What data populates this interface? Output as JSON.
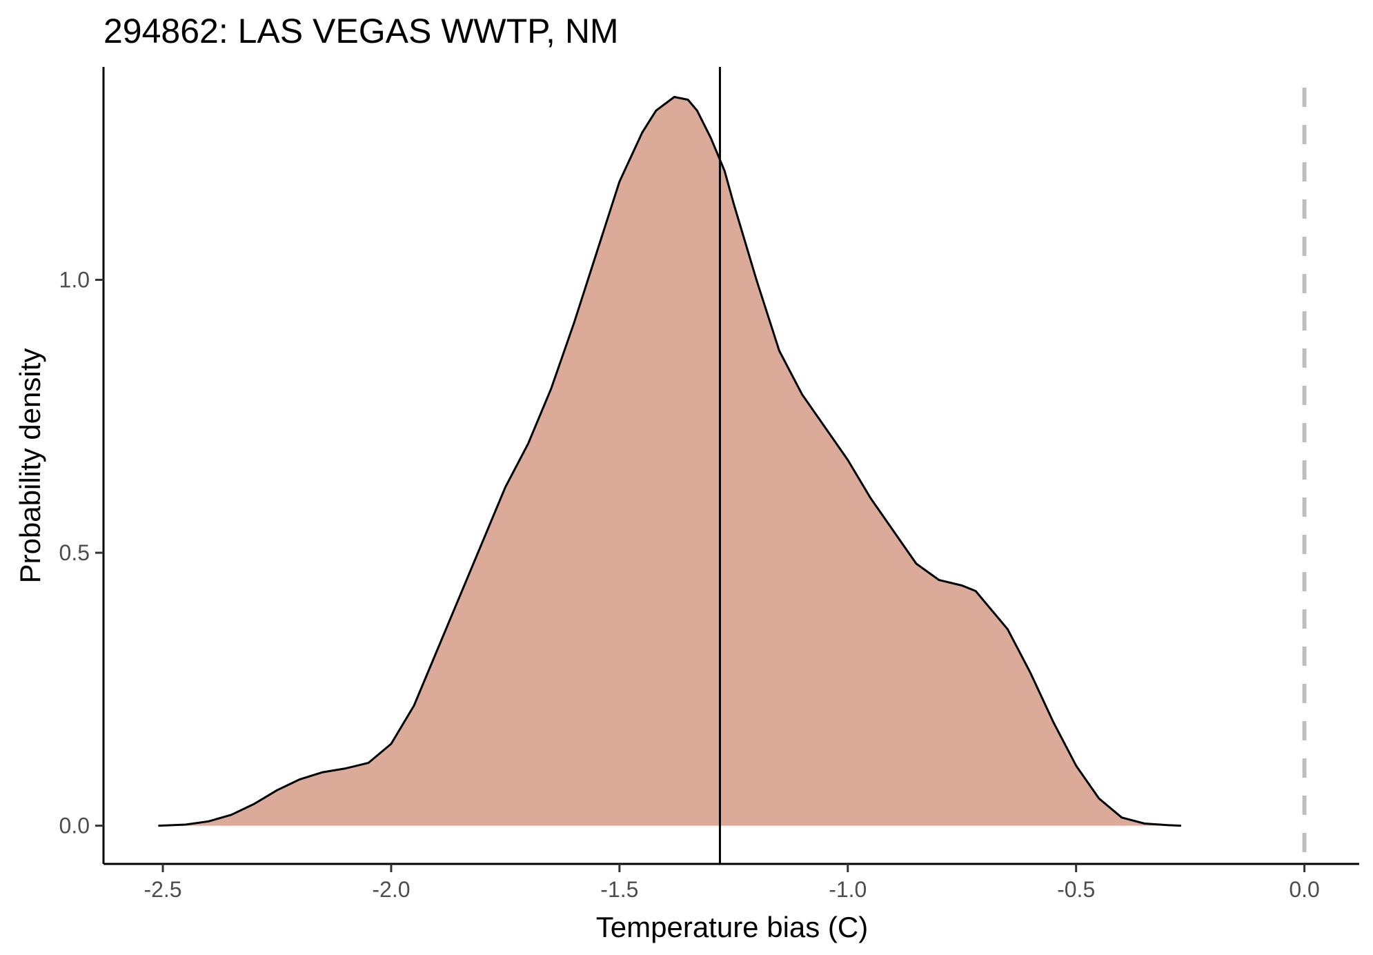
{
  "chart_data": {
    "type": "area",
    "title": "294862: LAS VEGAS WWTP, NM",
    "xlabel": "Temperature bias (C)",
    "ylabel": "Probability density",
    "xlim": [
      -2.63,
      0.12
    ],
    "ylim": [
      -0.07,
      1.39
    ],
    "x_ticks": [
      -2.5,
      -2.0,
      -1.5,
      -1.0,
      -0.5,
      0.0
    ],
    "x_tick_labels": [
      "-2.5",
      "-2.0",
      "-1.5",
      "-1.0",
      "-0.5",
      "0.0"
    ],
    "y_ticks": [
      0.0,
      0.5,
      1.0
    ],
    "y_tick_labels": [
      "0.0",
      "0.5",
      "1.0"
    ],
    "grid": false,
    "fill_color": "#dbaa99",
    "line_color": "#000000",
    "series": [
      {
        "x": [
          -2.51,
          -2.45,
          -2.4,
          -2.35,
          -2.3,
          -2.25,
          -2.2,
          -2.15,
          -2.1,
          -2.05,
          -2.0,
          -1.95,
          -1.9,
          -1.85,
          -1.8,
          -1.75,
          -1.7,
          -1.65,
          -1.6,
          -1.55,
          -1.5,
          -1.45,
          -1.42,
          -1.38,
          -1.35,
          -1.33,
          -1.3,
          -1.27,
          -1.25,
          -1.2,
          -1.15,
          -1.1,
          -1.05,
          -1.0,
          -0.95,
          -0.9,
          -0.85,
          -0.8,
          -0.75,
          -0.72,
          -0.7,
          -0.65,
          -0.6,
          -0.55,
          -0.5,
          -0.45,
          -0.4,
          -0.35,
          -0.3,
          -0.27
        ],
        "y": [
          0.0,
          0.002,
          0.008,
          0.02,
          0.04,
          0.065,
          0.085,
          0.098,
          0.105,
          0.115,
          0.15,
          0.22,
          0.32,
          0.42,
          0.52,
          0.62,
          0.7,
          0.8,
          0.92,
          1.05,
          1.18,
          1.27,
          1.31,
          1.335,
          1.33,
          1.31,
          1.26,
          1.2,
          1.14,
          1.0,
          0.87,
          0.79,
          0.73,
          0.67,
          0.6,
          0.54,
          0.48,
          0.45,
          0.44,
          0.43,
          0.41,
          0.36,
          0.28,
          0.19,
          0.11,
          0.05,
          0.015,
          0.004,
          0.001,
          0.0
        ]
      }
    ],
    "reference_lines": [
      {
        "type": "vertical",
        "x": -1.28,
        "style": "solid",
        "color": "#000000"
      },
      {
        "type": "vertical",
        "x": 0.0,
        "style": "dashed",
        "color": "#bebebe"
      }
    ]
  }
}
